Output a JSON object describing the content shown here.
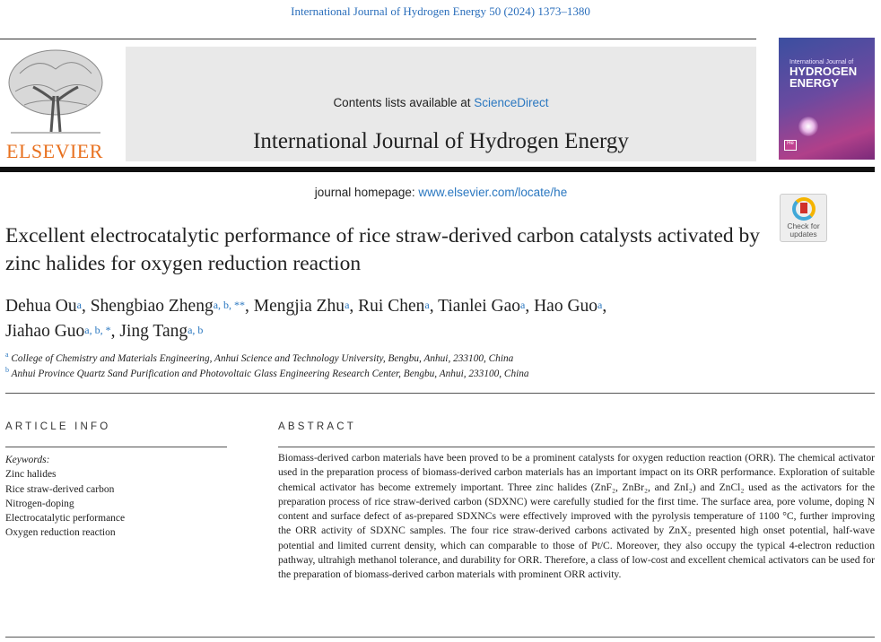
{
  "citation": "International Journal of Hydrogen Energy 50 (2024) 1373–1380",
  "header": {
    "contents_prefix": "Contents lists available at ",
    "contents_link": "ScienceDirect",
    "journal_title": "International Journal of Hydrogen Energy",
    "homepage_prefix": "journal homepage: ",
    "homepage_link": "www.elsevier.com/locate/he",
    "publisher_logo": "ELSEVIER",
    "cover_line1": "International Journal of",
    "cover_line2": "HYDROGEN",
    "cover_line3": "ENERGY",
    "cover_badge": "He"
  },
  "check_updates": {
    "line1": "Check for",
    "line2": "updates"
  },
  "article": {
    "title": "Excellent electrocatalytic performance of rice straw-derived carbon catalysts activated by zinc halides for oxygen reduction reaction",
    "authors": [
      {
        "name": "Dehua Ou",
        "sup": "a"
      },
      {
        "name": "Shengbiao Zheng",
        "sup": "a, b, **"
      },
      {
        "name": "Mengjia Zhu",
        "sup": "a"
      },
      {
        "name": "Rui Chen",
        "sup": "a"
      },
      {
        "name": "Tianlei Gao",
        "sup": "a"
      },
      {
        "name": "Hao Guo",
        "sup": "a"
      },
      {
        "name": "Jiahao Guo",
        "sup": "a, b, *"
      },
      {
        "name": "Jing Tang",
        "sup": "a, b"
      }
    ],
    "affiliations": [
      {
        "key": "a",
        "text": "College of Chemistry and Materials Engineering, Anhui Science and Technology University, Bengbu, Anhui, 233100, China"
      },
      {
        "key": "b",
        "text": "Anhui Province Quartz Sand Purification and Photovoltaic Glass Engineering Research Center, Bengbu, Anhui, 233100, China"
      }
    ]
  },
  "article_info": {
    "heading": "ARTICLE INFO",
    "keywords_label": "Keywords:",
    "keywords": [
      "Zinc halides",
      "Rice straw-derived carbon",
      "Nitrogen-doping",
      "Electrocatalytic performance",
      "Oxygen reduction reaction"
    ]
  },
  "abstract": {
    "heading": "ABSTRACT",
    "text": "Biomass-derived carbon materials have been proved to be a prominent catalysts for oxygen reduction reaction (ORR). The chemical activator used in the preparation process of biomass-derived carbon materials has an important impact on its ORR performance. Exploration of suitable chemical activator has become extremely important. Three zinc halides (ZnF₂, ZnBr₂, and ZnI₂) and ZnCl₂ used as the activators for the preparation process of rice straw-derived carbon (SDXNC) were carefully studied for the first time. The surface area, pore volume, doping N content and surface defect of as-prepared SDXNCs were effectively improved with the pyrolysis temperature of 1100 °C, further improving the ORR activity of SDXNC samples. The four rice straw-derived carbons activated by ZnX₂ presented high onset potential, half-wave potential and limited current density, which can comparable to those of Pt/C. Moreover, they also occupy the typical 4-electron reduction pathway, ultrahigh methanol tolerance, and durability for ORR. Therefore, a class of low-cost and excellent chemical activators can be used for the preparation of biomass-derived carbon materials with prominent ORR activity."
  }
}
